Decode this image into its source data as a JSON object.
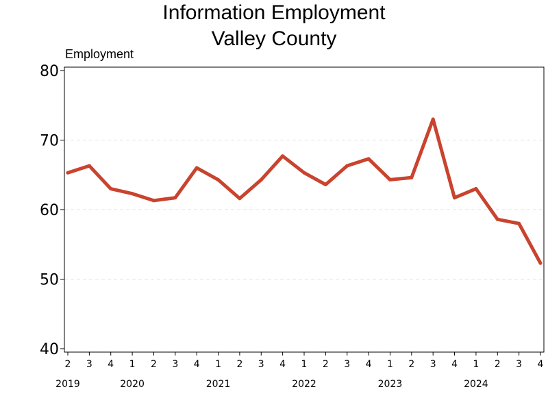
{
  "chart_data": {
    "type": "line",
    "title": [
      "Information Employment",
      "Valley County"
    ],
    "ylabel": "Employment",
    "xlabel": "",
    "ylim": [
      40,
      80
    ],
    "yticks": [
      40,
      50,
      60,
      70,
      80
    ],
    "grid": "horizontal dashed",
    "quarters": [
      "2",
      "3",
      "4",
      "1",
      "2",
      "3",
      "4",
      "1",
      "2",
      "3",
      "4",
      "1",
      "2",
      "3",
      "4",
      "1",
      "2",
      "3",
      "4",
      "1",
      "2",
      "3",
      "4"
    ],
    "years": [
      {
        "label": "2019",
        "quarter_index": 0
      },
      {
        "label": "2020",
        "quarter_index": 3
      },
      {
        "label": "2021",
        "quarter_index": 7
      },
      {
        "label": "2022",
        "quarter_index": 11
      },
      {
        "label": "2023",
        "quarter_index": 15
      },
      {
        "label": "2024",
        "quarter_index": 19
      }
    ],
    "series": [
      {
        "color": "#c9432e",
        "values": [
          65.3,
          66.3,
          63.0,
          62.3,
          61.3,
          61.7,
          66.0,
          64.3,
          61.6,
          64.3,
          67.7,
          65.3,
          63.6,
          66.3,
          67.3,
          64.3,
          64.6,
          73.0,
          61.7,
          63.0,
          58.6,
          58.0,
          52.3
        ]
      }
    ]
  }
}
